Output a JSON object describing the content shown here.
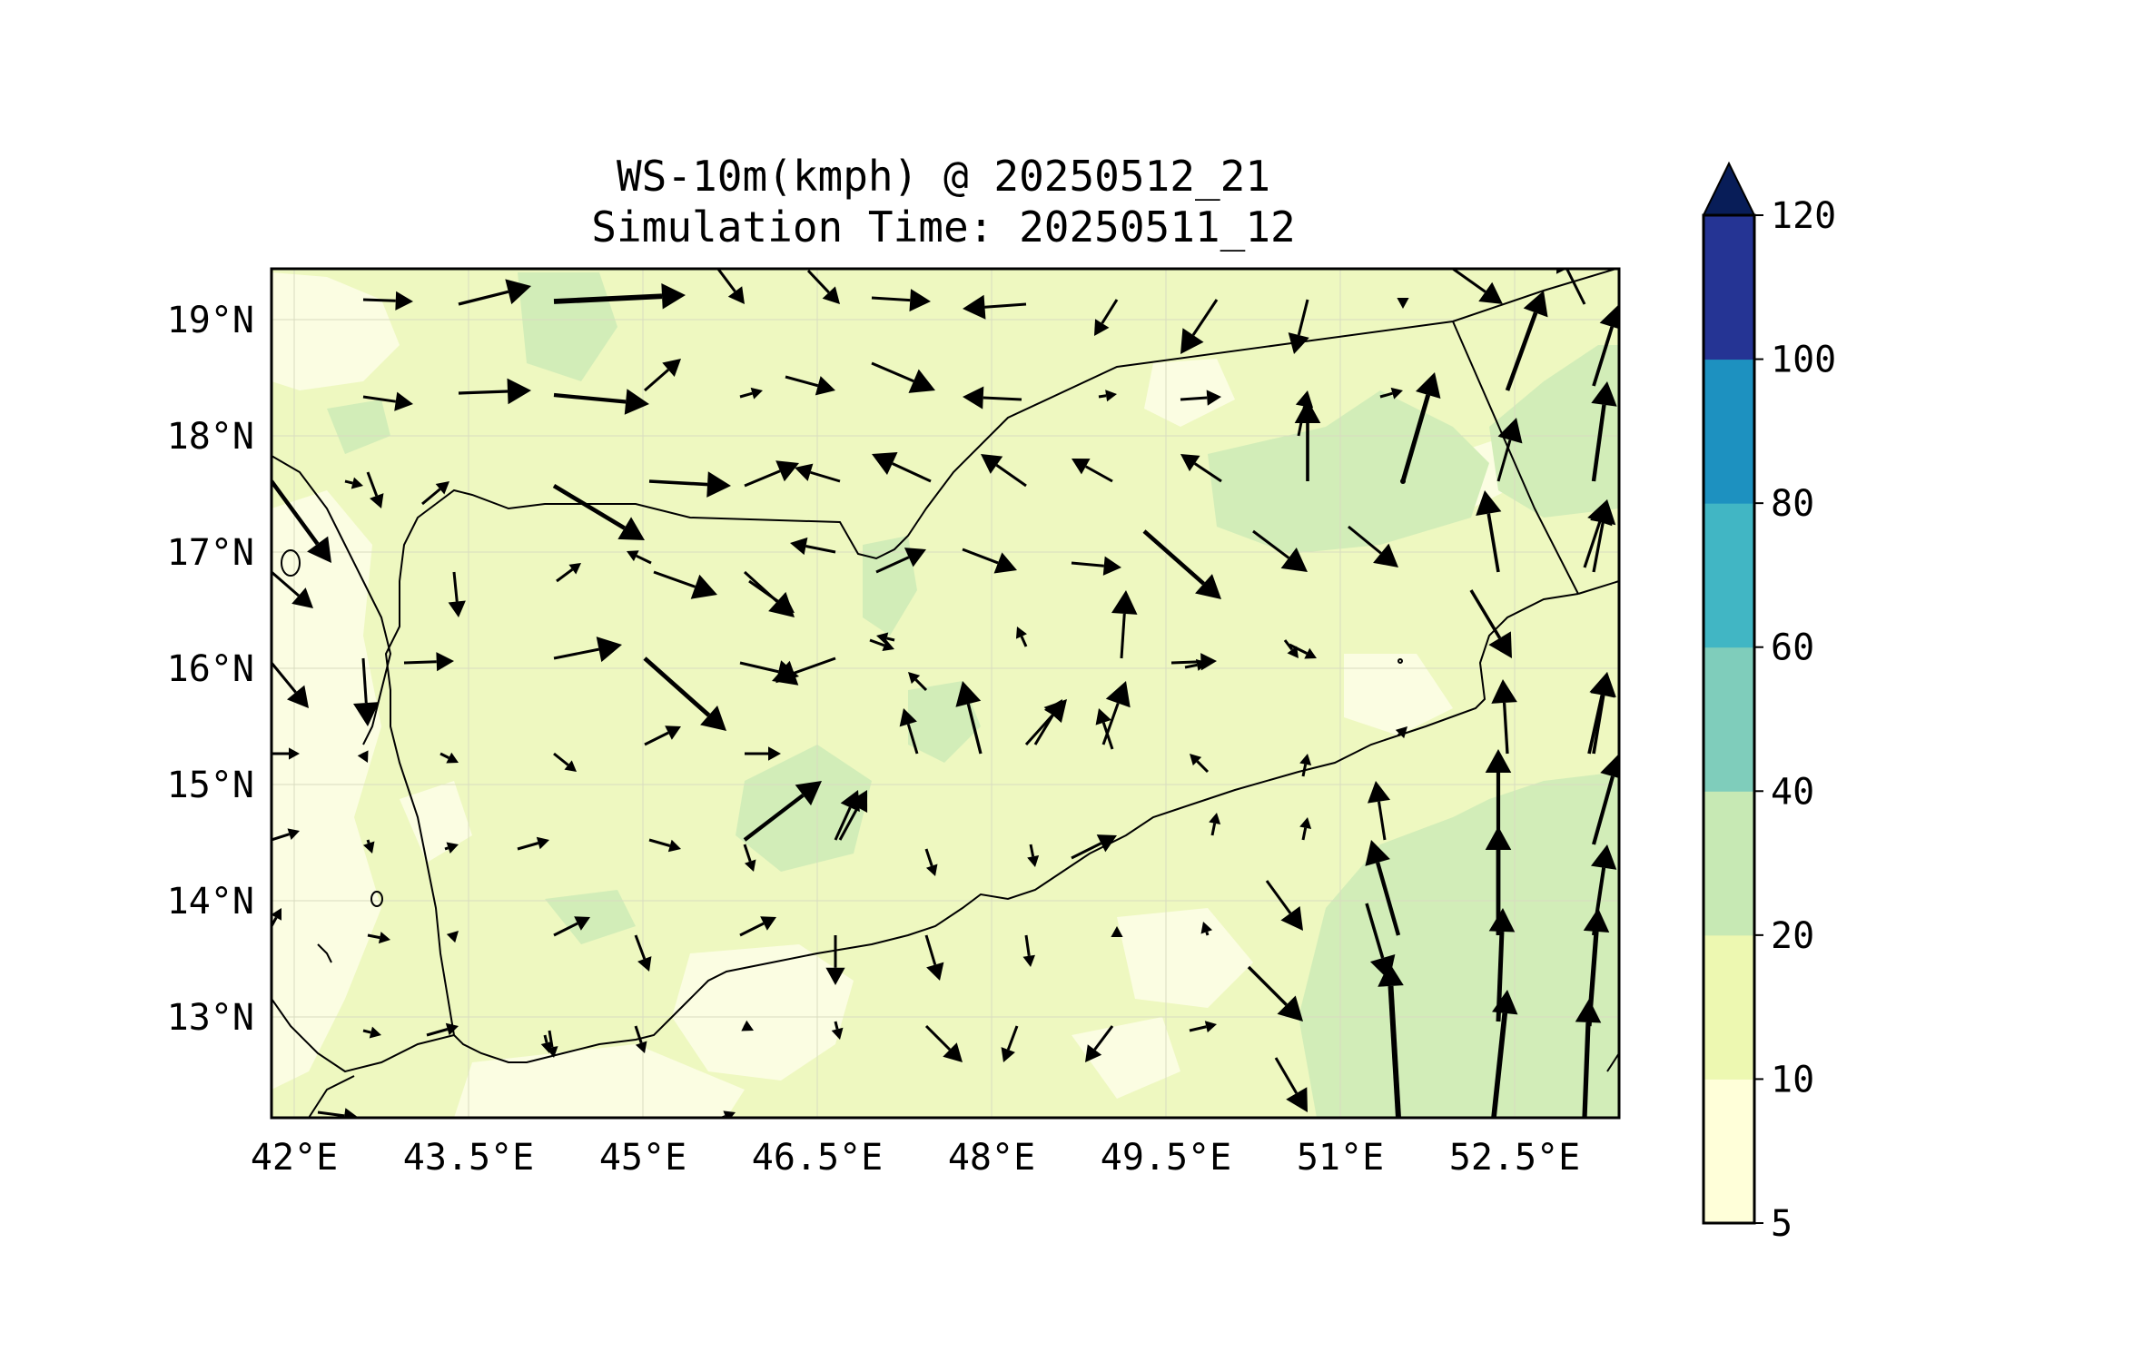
{
  "title_line1": "WS-10m(kmph) @ 20250512_21",
  "title_line2": "Simulation Time: 20250511_12",
  "lon_ticks": [
    "42°E",
    "43.5°E",
    "45°E",
    "46.5°E",
    "48°E",
    "49.5°E",
    "51°E",
    "52.5°E"
  ],
  "lat_ticks": [
    "19°N",
    "18°N",
    "17°N",
    "16°N",
    "15°N",
    "14°N",
    "13°N"
  ],
  "colorbar": {
    "levels": [
      "5",
      "10",
      "20",
      "40",
      "60",
      "80",
      "100",
      "120"
    ],
    "colors": [
      "#ffffd9",
      "#edf8b1",
      "#c7e9b4",
      "#7fcdbb",
      "#41b6c4",
      "#1d91c0",
      "#253494"
    ],
    "extend_color": "#081d58",
    "extend": "max"
  },
  "map": {
    "land_fill": "#eef8c0",
    "calm_fill": "#fbfde2",
    "moderate_fill": "#d2edb8",
    "border_color": "#000000",
    "arrow_color": "#000000"
  }
}
